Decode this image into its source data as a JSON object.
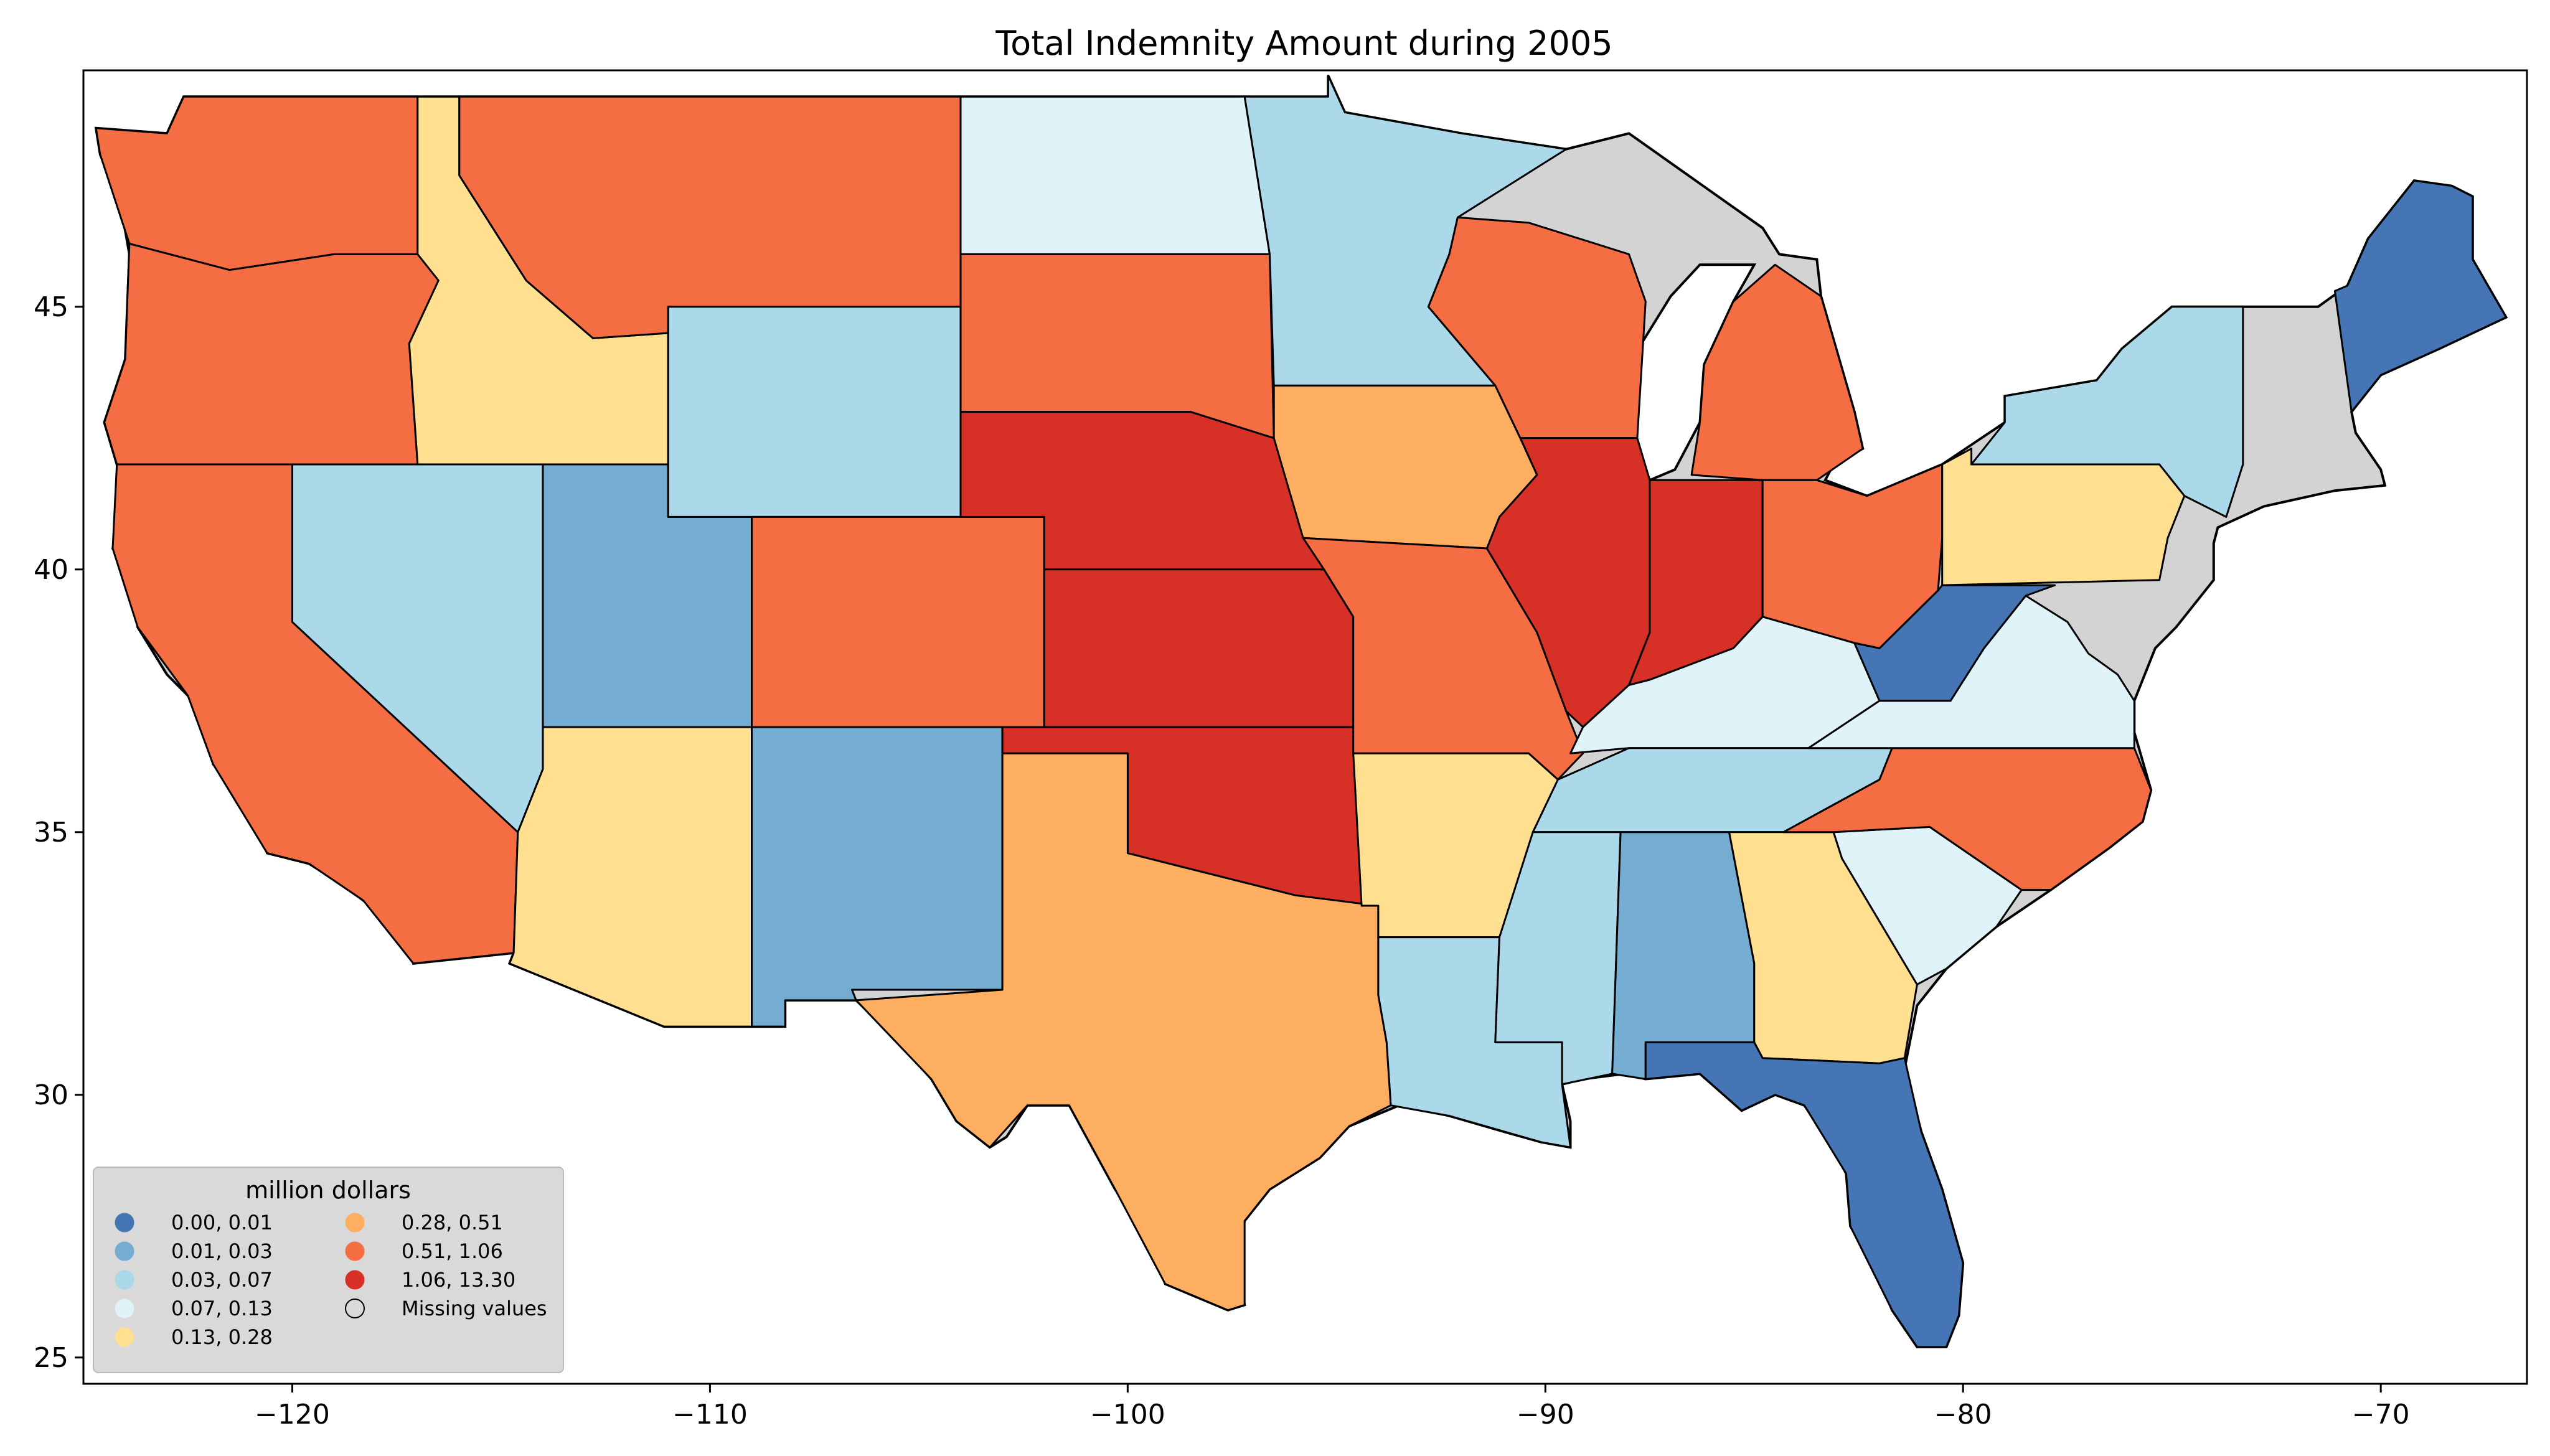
{
  "title": "Total Indemnity Amount during 2005",
  "map": {
    "lon_range": [
      -125,
      -66.5
    ],
    "lat_range": [
      24.5,
      49.5
    ],
    "x_ticks": [
      {
        "value": -120,
        "label": "−120"
      },
      {
        "value": -110,
        "label": "−110"
      },
      {
        "value": -100,
        "label": "−100"
      },
      {
        "value": -90,
        "label": "−90"
      },
      {
        "value": -80,
        "label": "−80"
      },
      {
        "value": -70,
        "label": "−70"
      }
    ],
    "y_ticks": [
      {
        "value": 25,
        "label": "25"
      },
      {
        "value": 30,
        "label": "30"
      },
      {
        "value": 35,
        "label": "35"
      },
      {
        "value": 40,
        "label": "40"
      },
      {
        "value": 45,
        "label": "45"
      }
    ],
    "missing_color": "#d3d3d3",
    "regions": [
      {
        "name": "Washington",
        "bin": 6
      },
      {
        "name": "Oregon",
        "bin": 6
      },
      {
        "name": "California",
        "bin": 6
      },
      {
        "name": "Idaho",
        "bin": 4
      },
      {
        "name": "Nevada",
        "bin": 2
      },
      {
        "name": "Utah",
        "bin": 1
      },
      {
        "name": "Arizona",
        "bin": 4
      },
      {
        "name": "Montana",
        "bin": 6
      },
      {
        "name": "Wyoming",
        "bin": 2
      },
      {
        "name": "Colorado",
        "bin": 6
      },
      {
        "name": "New Mexico",
        "bin": 1
      },
      {
        "name": "North Dakota",
        "bin": 3
      },
      {
        "name": "South Dakota",
        "bin": 6
      },
      {
        "name": "Nebraska",
        "bin": 7
      },
      {
        "name": "Kansas",
        "bin": 7
      },
      {
        "name": "Oklahoma",
        "bin": 7
      },
      {
        "name": "Texas",
        "bin": 5
      },
      {
        "name": "Minnesota",
        "bin": 2
      },
      {
        "name": "Iowa",
        "bin": 5
      },
      {
        "name": "Missouri",
        "bin": 6
      },
      {
        "name": "Arkansas",
        "bin": 4
      },
      {
        "name": "Louisiana",
        "bin": 2
      },
      {
        "name": "Wisconsin",
        "bin": 6
      },
      {
        "name": "Illinois",
        "bin": 7
      },
      {
        "name": "Michigan",
        "bin": 6
      },
      {
        "name": "Indiana",
        "bin": 7
      },
      {
        "name": "Ohio",
        "bin": 6
      },
      {
        "name": "Kentucky",
        "bin": 3
      },
      {
        "name": "Tennessee",
        "bin": 2
      },
      {
        "name": "Mississippi",
        "bin": 2
      },
      {
        "name": "Alabama",
        "bin": 1
      },
      {
        "name": "Georgia",
        "bin": 4
      },
      {
        "name": "Florida",
        "bin": 0
      },
      {
        "name": "South Carolina",
        "bin": 3
      },
      {
        "name": "North Carolina",
        "bin": 6
      },
      {
        "name": "Virginia",
        "bin": 3
      },
      {
        "name": "West Virginia",
        "bin": 0
      },
      {
        "name": "Pennsylvania",
        "bin": 4
      },
      {
        "name": "New York",
        "bin": 2
      },
      {
        "name": "Maine",
        "bin": 0
      }
    ]
  },
  "legend": {
    "title": "million dollars",
    "items": [
      {
        "label": "0.00,  0.01",
        "color": "#4575b4"
      },
      {
        "label": "0.01,  0.03",
        "color": "#74add1"
      },
      {
        "label": "0.03,  0.07",
        "color": "#abd9e9"
      },
      {
        "label": "0.07,  0.13",
        "color": "#e0f3f8"
      },
      {
        "label": "0.13,  0.28",
        "color": "#fee090"
      },
      {
        "label": "0.28,  0.51",
        "color": "#fdae61"
      },
      {
        "label": "0.51,  1.06",
        "color": "#f46d43"
      },
      {
        "label": "1.06, 13.30",
        "color": "#d73027"
      },
      {
        "label": "Missing values",
        "color": "none"
      }
    ]
  }
}
